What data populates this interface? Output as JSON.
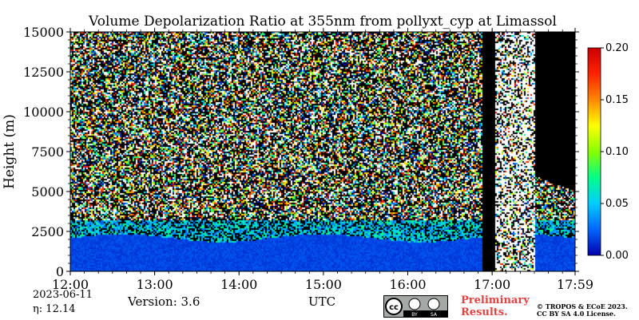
{
  "chart_data": {
    "type": "heatmap",
    "title": "Volume Depolarization Ratio at 355nm from pollyxt_cyp at Limassol",
    "ylabel": "Height (m)",
    "xlabel": "UTC",
    "x_ticks": [
      "12:00",
      "13:00",
      "14:00",
      "15:00",
      "16:00",
      "17:00",
      "17:59"
    ],
    "x_range_hours": [
      12.0,
      17.983
    ],
    "y_ticks": [
      0,
      2500,
      5000,
      7500,
      10000,
      12500,
      15000
    ],
    "ylim": [
      0,
      15000
    ],
    "colorbar": {
      "ticks": [
        "0.00",
        "0.05",
        "0.10",
        "0.15",
        "0.20"
      ],
      "range": [
        0.0,
        0.2
      ],
      "colors": [
        "#0000aa",
        "#0066ff",
        "#00ccff",
        "#00ff88",
        "#88ff00",
        "#ffff00",
        "#ff8800",
        "#ff2200",
        "#cc0000"
      ]
    },
    "gaps_utc": [
      [
        "16:52",
        "17:02"
      ]
    ],
    "noise_only_utc": [
      [
        "17:02",
        "17:30"
      ]
    ],
    "no_data_utc": [
      [
        "17:30",
        "17:59"
      ]
    ],
    "boundary_layer_top_m": 2500
  },
  "footer": {
    "date": "2023-06-11",
    "eta": "η:  12.14",
    "version": "Version: 3.6",
    "utc": "UTC",
    "preliminary": [
      "Preliminary",
      "Results."
    ],
    "copyright": [
      "© TROPOS & ECoE 2023.",
      "CC BY SA 4.0 License."
    ],
    "license_badge": [
      "cc",
      "BY",
      "SA"
    ]
  }
}
